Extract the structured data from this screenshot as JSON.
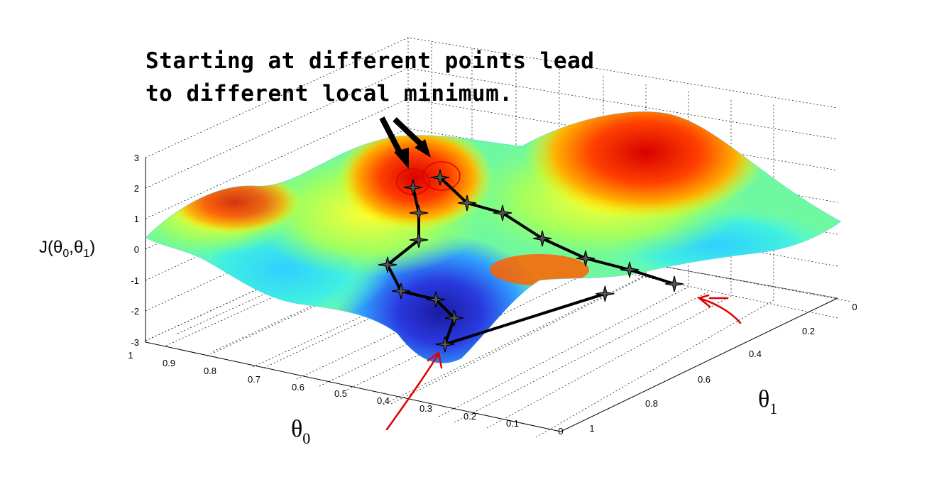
{
  "annotation": {
    "line1": "Starting at different points lead",
    "line2": "to different local minimum."
  },
  "chart_data": {
    "type": "surface",
    "title": "",
    "xlabel": "θ0",
    "ylabel": "θ1",
    "zlabel": "J(θ0,θ1)",
    "x_ticks": [
      "1",
      "0.9",
      "0.8",
      "0.7",
      "0.6",
      "0.5",
      "0.4",
      "0.3",
      "0.2",
      "0.1",
      "0"
    ],
    "y_ticks": [
      "0",
      "0.2",
      "0.4",
      "0.6",
      "0.8",
      "1"
    ],
    "z_ticks": [
      "3",
      "2",
      "1",
      "0",
      "-1",
      "-2",
      "-3"
    ],
    "xlim": [
      0,
      1
    ],
    "ylim": [
      0,
      1
    ],
    "zlim": [
      -3,
      3
    ],
    "grid": true,
    "colormap": "jet",
    "paths": [
      {
        "points": [
          {
            "theta0": 0.45,
            "theta1": 0.18,
            "J": 2.3
          },
          {
            "theta0": 0.44,
            "theta1": 0.2,
            "J": 1.8
          },
          {
            "theta0": 0.43,
            "theta1": 0.22,
            "J": 1.2
          },
          {
            "theta0": 0.42,
            "theta1": 0.24,
            "J": 0.6
          },
          {
            "theta0": 0.47,
            "theta1": 0.2,
            "J": -0.2
          },
          {
            "theta0": 0.48,
            "theta1": 0.24,
            "J": -0.9
          },
          {
            "theta0": 0.4,
            "theta1": 0.32,
            "J": -1.3
          },
          {
            "theta0": 0.36,
            "theta1": 0.34,
            "J": -2.0
          },
          {
            "theta0": 0.36,
            "theta1": 0.3,
            "J": -2.6
          }
        ]
      },
      {
        "points": [
          {
            "theta0": 0.42,
            "theta1": 0.2,
            "J": 2.5
          },
          {
            "theta0": 0.38,
            "theta1": 0.28,
            "J": 1.9
          },
          {
            "theta0": 0.34,
            "theta1": 0.36,
            "J": 1.6
          },
          {
            "theta0": 0.28,
            "theta1": 0.44,
            "J": 1.0
          },
          {
            "theta0": 0.22,
            "theta1": 0.54,
            "J": 0.5
          },
          {
            "theta0": 0.16,
            "theta1": 0.62,
            "J": 0.0
          },
          {
            "theta0": 0.1,
            "theta1": 0.7,
            "J": -0.4
          }
        ]
      }
    ],
    "colors": {
      "path": "#000000",
      "start_marker": "#e00000",
      "end_arrow": "#e00000",
      "annotation_arrow": "#000000"
    }
  }
}
